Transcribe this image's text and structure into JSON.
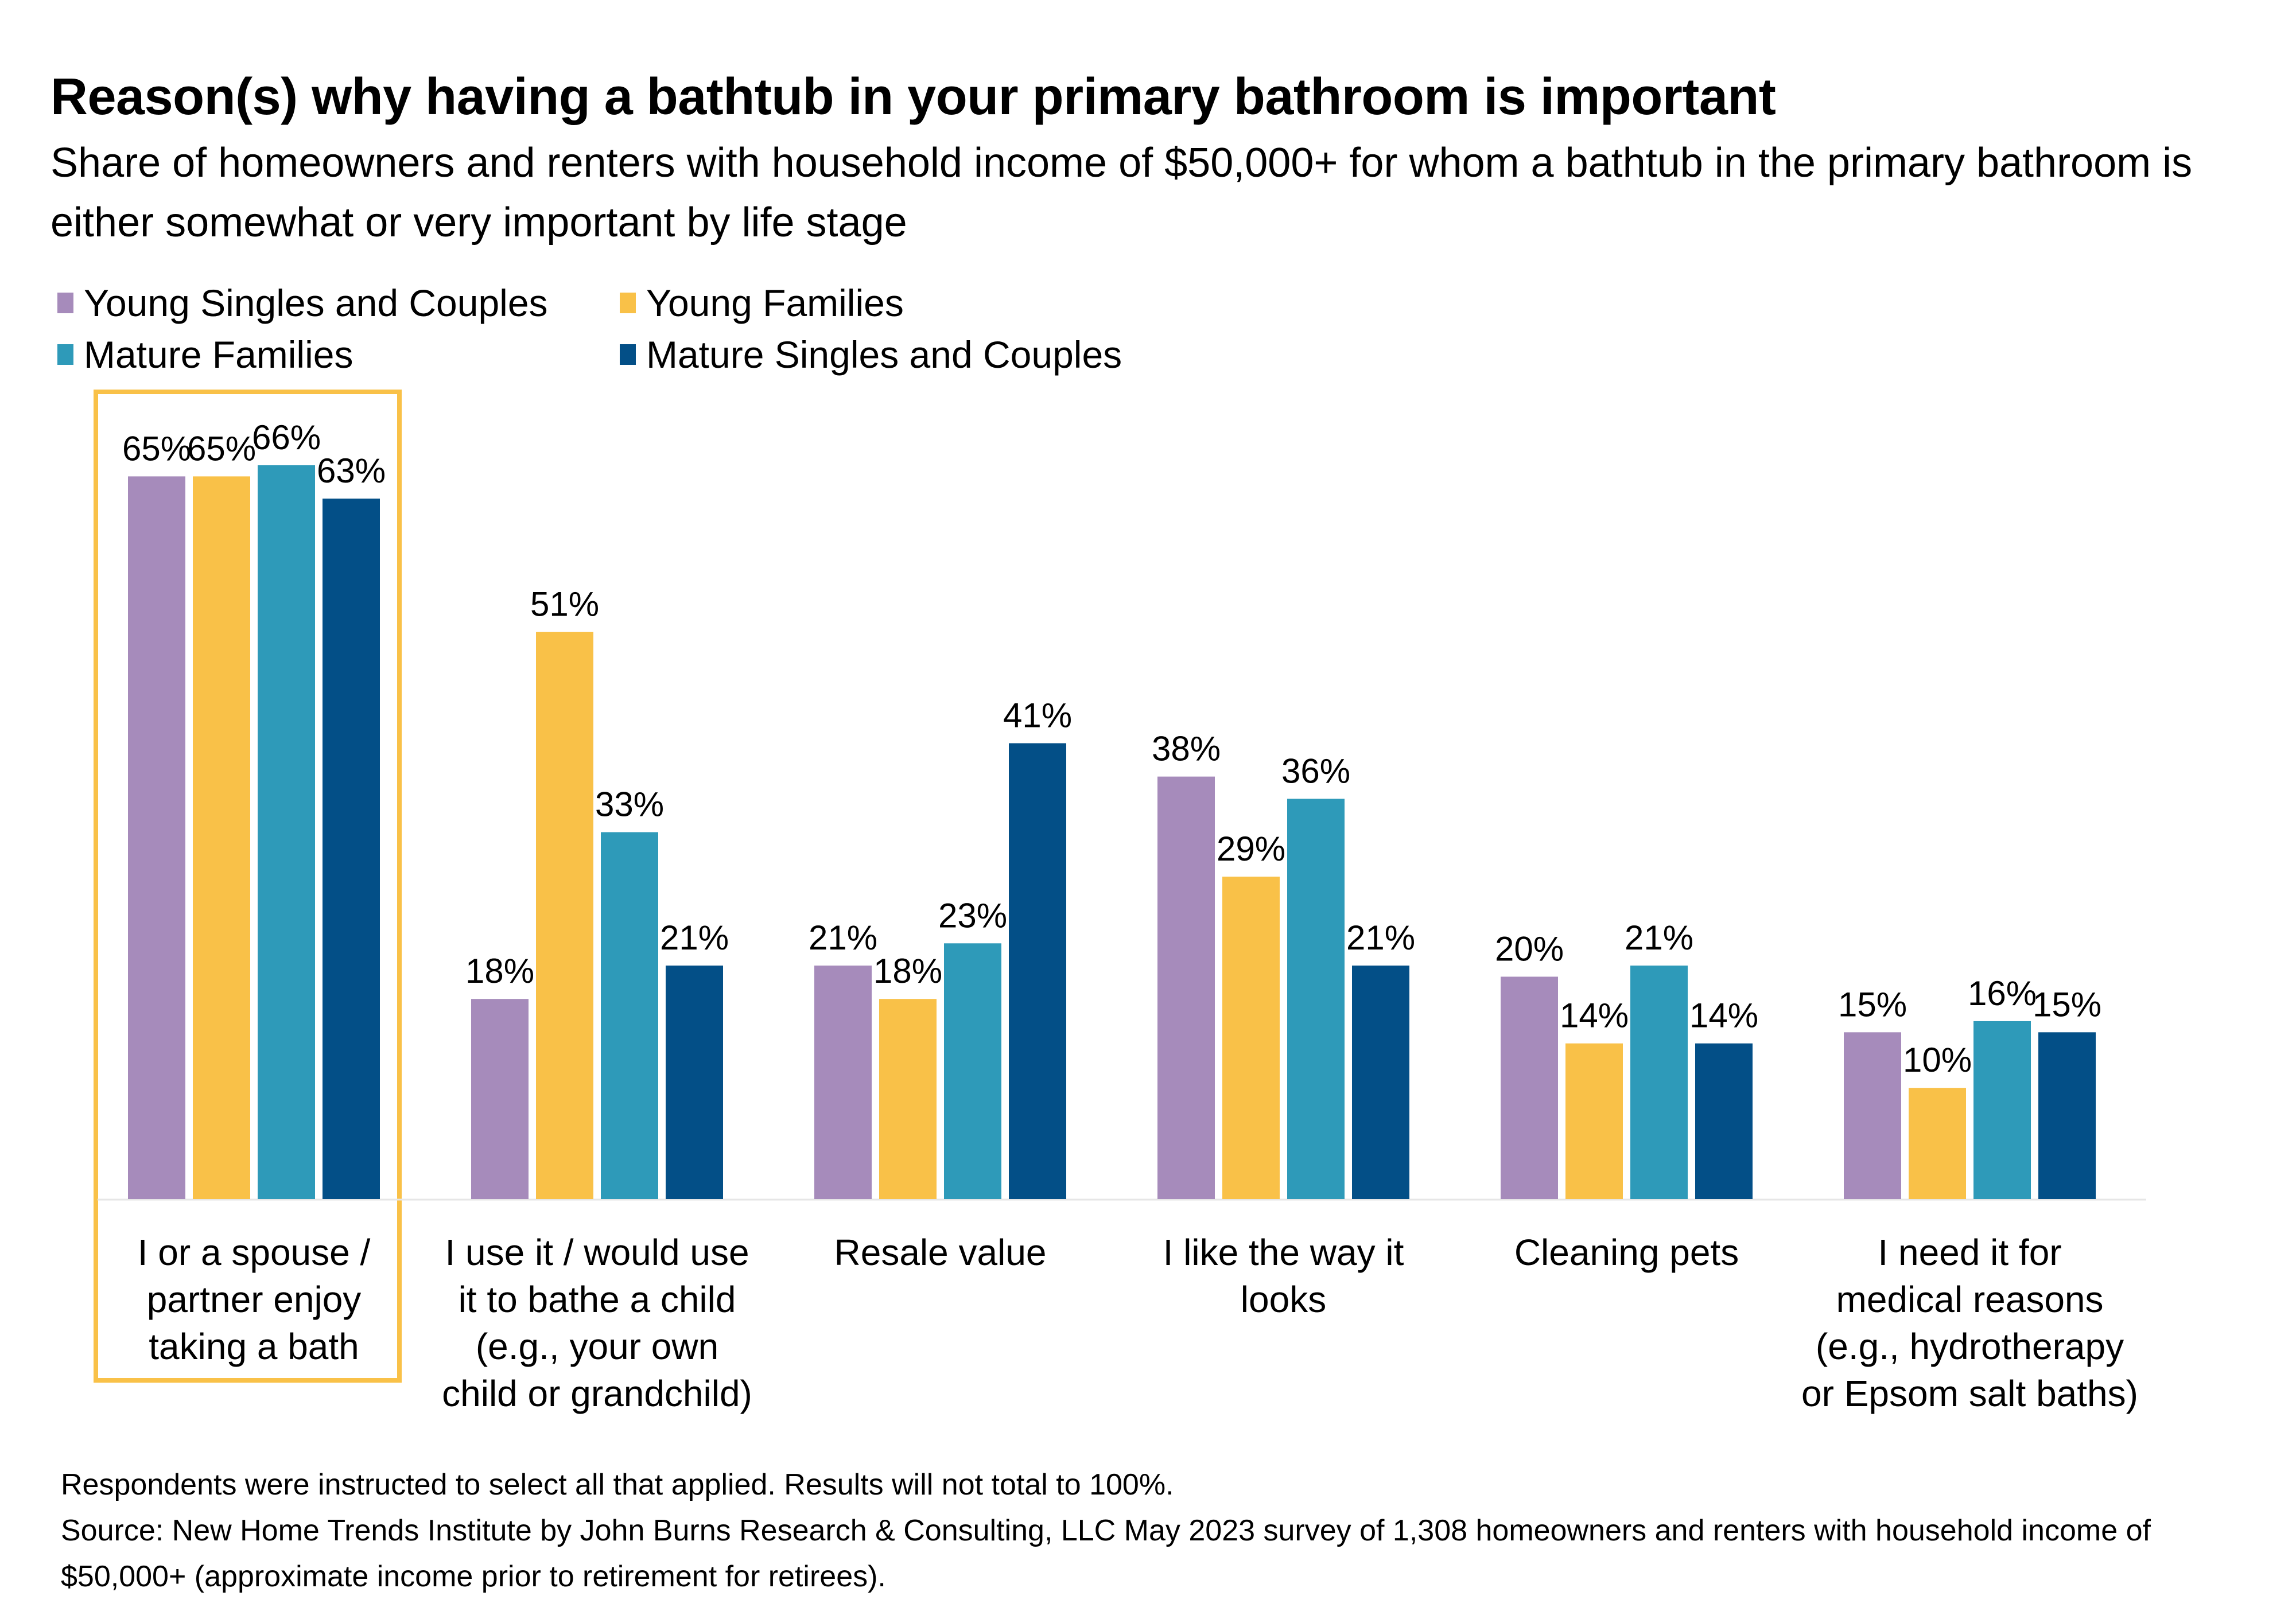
{
  "header": {
    "title": "Reason(s) why having a bathtub in your primary bathroom is important",
    "subtitle": "Share of homeowners and renters with household income of $50,000+ for whom a bathtub in the primary bathroom is either somewhat or very important by life stage"
  },
  "legend": [
    {
      "label": "Young Singles and Couples",
      "color": "#A68BBB"
    },
    {
      "label": "Young Families",
      "color": "#F9C148"
    },
    {
      "label": "Mature Families",
      "color": "#2E9AB9"
    },
    {
      "label": "Mature Singles and Couples",
      "color": "#034F87"
    }
  ],
  "footer": {
    "note": "Respondents were instructed to select all that applied. Results will not total to 100%.",
    "source": "Source: New Home Trends Institute by John Burns Research & Consulting, LLC May 2023 survey of 1,308 homeowners and renters with household income of $50,000+ (approximate income prior to retirement for retirees)."
  },
  "chart_data": {
    "type": "bar",
    "title": "Reason(s) why having a bathtub in your primary bathroom is important",
    "subtitle": "Share of homeowners and renters with household income of $50,000+ for whom a bathtub in the primary bathroom is either somewhat or very important by life stage",
    "xlabel": "",
    "ylabel": "",
    "ylim": [
      0,
      70
    ],
    "grid": false,
    "legend_position": "top-left",
    "value_format": "percent",
    "highlighted_category": 0,
    "categories": [
      "I or a spouse / partner enjoy taking a bath",
      "I use it / would use it to bathe a child (e.g., your own child or grandchild)",
      "Resale value",
      "I like the way it looks",
      "Cleaning pets",
      "I need it for medical reasons (e.g., hydrotherapy or Epsom salt baths)"
    ],
    "category_lines": [
      [
        "I or a spouse /",
        "partner enjoy",
        "taking a bath"
      ],
      [
        "I use it / would use",
        "it to bathe a child",
        "(e.g., your own",
        "child or grandchild)"
      ],
      [
        "Resale value"
      ],
      [
        "I like the way it",
        "looks"
      ],
      [
        "Cleaning pets"
      ],
      [
        "I need it for",
        "medical reasons",
        "(e.g., hydrotherapy",
        "or Epsom salt baths)"
      ]
    ],
    "series": [
      {
        "name": "Young Singles and Couples",
        "color": "#A68BBB",
        "values": [
          65,
          18,
          21,
          38,
          20,
          15
        ]
      },
      {
        "name": "Young Families",
        "color": "#F9C148",
        "values": [
          65,
          51,
          18,
          29,
          14,
          10
        ]
      },
      {
        "name": "Mature Families",
        "color": "#2E9AB9",
        "values": [
          66,
          33,
          23,
          36,
          21,
          16
        ]
      },
      {
        "name": "Mature Singles and Couples",
        "color": "#034F87",
        "values": [
          63,
          21,
          41,
          21,
          14,
          15
        ]
      }
    ]
  }
}
